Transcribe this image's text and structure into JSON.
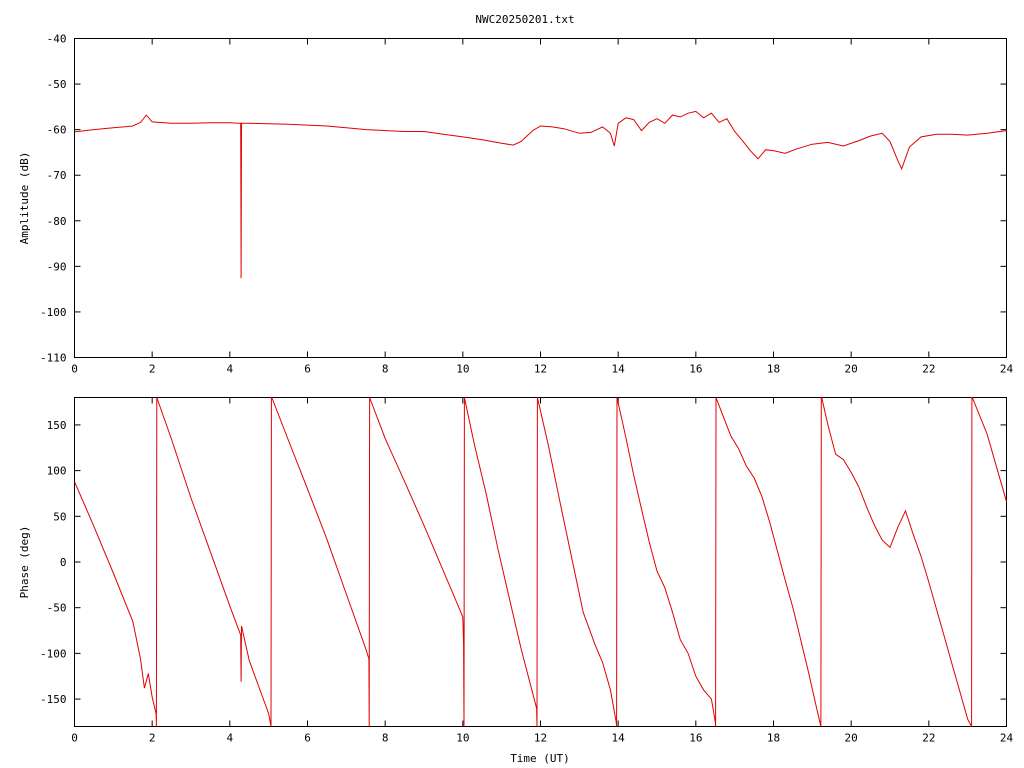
{
  "title": "NWC20250201.txt",
  "colors": {
    "series": "#e00000",
    "axis": "#000000",
    "background": "#ffffff"
  },
  "chart_data": [
    {
      "type": "line",
      "title": "NWC20250201.txt",
      "xlabel": "",
      "ylabel": "Amplitude (dB)",
      "xlim": [
        0,
        24
      ],
      "ylim": [
        -110,
        -40
      ],
      "xticks": [
        "0",
        "2",
        "4",
        "6",
        "8",
        "10",
        "12",
        "14",
        "16",
        "18",
        "20",
        "22",
        "24"
      ],
      "yticks": [
        "-40",
        "-50",
        "-60",
        "-70",
        "-80",
        "-90",
        "-100",
        "-110"
      ],
      "grid": false,
      "legend": "none",
      "series": [
        {
          "x": [
            0,
            0.5,
            1.0,
            1.5,
            1.7,
            1.85,
            2.0,
            2.5,
            3.0,
            3.5,
            4.0,
            4.28,
            4.29,
            4.3,
            4.31,
            4.5,
            5.0,
            5.5,
            6.0,
            6.5,
            7.0,
            7.5,
            8.0,
            8.5,
            9.0,
            9.5,
            10.0,
            10.5,
            11.0,
            11.3,
            11.5,
            11.8,
            12.0,
            12.3,
            12.6,
            13.0,
            13.3,
            13.6,
            13.8,
            13.9,
            14.0,
            14.2,
            14.4,
            14.6,
            14.8,
            15.0,
            15.2,
            15.4,
            15.6,
            15.8,
            16.0,
            16.2,
            16.4,
            16.6,
            16.8,
            17.0,
            17.2,
            17.4,
            17.6,
            17.8,
            18.0,
            18.3,
            18.6,
            19.0,
            19.4,
            19.8,
            20.2,
            20.5,
            20.8,
            21.0,
            21.2,
            21.3,
            21.5,
            21.8,
            22.2,
            22.6,
            23.0,
            23.5,
            24.0
          ],
          "y": [
            -60.5,
            -60.0,
            -59.6,
            -59.2,
            -58.4,
            -56.8,
            -58.3,
            -58.6,
            -58.6,
            -58.5,
            -58.5,
            -58.6,
            -92.6,
            -58.6,
            -58.6,
            -58.6,
            -58.7,
            -58.8,
            -59.0,
            -59.2,
            -59.6,
            -60.0,
            -60.2,
            -60.4,
            -60.4,
            -61.0,
            -61.6,
            -62.2,
            -63.0,
            -63.4,
            -62.6,
            -60.2,
            -59.2,
            -59.4,
            -59.8,
            -60.8,
            -60.6,
            -59.4,
            -60.8,
            -63.6,
            -58.6,
            -57.4,
            -57.8,
            -60.2,
            -58.4,
            -57.6,
            -58.6,
            -56.8,
            -57.2,
            -56.4,
            -56.0,
            -57.4,
            -56.4,
            -58.4,
            -57.6,
            -60.4,
            -62.4,
            -64.6,
            -66.4,
            -64.4,
            -64.6,
            -65.2,
            -64.2,
            -63.2,
            -62.8,
            -63.6,
            -62.4,
            -61.4,
            -60.8,
            -62.6,
            -66.8,
            -68.6,
            -63.8,
            -61.6,
            -61.0,
            -61.0,
            -61.2,
            -60.8,
            -60.2
          ]
        }
      ]
    },
    {
      "type": "line",
      "title": "",
      "xlabel": "Time (UT)",
      "ylabel": "Phase (deg)",
      "xlim": [
        0,
        24
      ],
      "ylim": [
        -180,
        180
      ],
      "xticks": [
        "0",
        "2",
        "4",
        "6",
        "8",
        "10",
        "12",
        "14",
        "16",
        "18",
        "20",
        "22",
        "24"
      ],
      "yticks": [
        "150",
        "100",
        "50",
        "0",
        "-50",
        "-100",
        "-150"
      ],
      "grid": false,
      "legend": "none",
      "series": [
        {
          "x": [
            0,
            0.5,
            1.0,
            1.5,
            1.7,
            1.8,
            1.9,
            2.0,
            2.1,
            2.11,
            2.12,
            2.5,
            3.0,
            3.5,
            4.0,
            4.28,
            4.29,
            4.3,
            4.5,
            5.0,
            5.06,
            5.07,
            5.08,
            5.5,
            6.0,
            6.5,
            7.0,
            7.5,
            7.58,
            7.59,
            7.6,
            8.0,
            8.5,
            9.0,
            9.5,
            10.0,
            10.02,
            10.03,
            10.04,
            10.3,
            10.6,
            10.9,
            11.2,
            11.5,
            11.9,
            11.91,
            11.92,
            12.2,
            12.5,
            12.8,
            13.1,
            13.4,
            13.6,
            13.8,
            13.95,
            13.96,
            13.97,
            14.2,
            14.4,
            14.6,
            14.8,
            15.0,
            15.2,
            15.4,
            15.6,
            15.8,
            16.0,
            16.2,
            16.4,
            16.5,
            16.51,
            16.52,
            16.7,
            16.9,
            17.1,
            17.3,
            17.5,
            17.7,
            17.9,
            18.1,
            18.3,
            18.5,
            18.7,
            18.9,
            19.1,
            19.22,
            19.23,
            19.24,
            19.4,
            19.6,
            19.8,
            20.0,
            20.2,
            20.4,
            20.6,
            20.8,
            21.0,
            21.2,
            21.4,
            21.6,
            21.8,
            22.0,
            22.2,
            22.4,
            22.6,
            22.8,
            23.0,
            23.1,
            23.11,
            23.12,
            23.5,
            24.0
          ],
          "y": [
            88,
            39,
            -12,
            -65,
            -106,
            -138,
            -122,
            -148,
            -166,
            -180,
            180,
            134,
            70,
            11,
            -48,
            -80,
            -131,
            -70,
            -108,
            -166,
            -180,
            180,
            180,
            134,
            80,
            25,
            -35,
            -95,
            -106,
            -180,
            180,
            135,
            88,
            40,
            -10,
            -60,
            -90,
            -180,
            180,
            128,
            75,
            15,
            -40,
            -95,
            -160,
            -180,
            180,
            128,
            66,
            5,
            -55,
            -90,
            -110,
            -140,
            -175,
            -180,
            180,
            136,
            95,
            58,
            22,
            -10,
            -28,
            -55,
            -85,
            -100,
            -125,
            -140,
            -150,
            -175,
            -180,
            180,
            160,
            138,
            124,
            105,
            92,
            72,
            44,
            12,
            -20,
            -50,
            -85,
            -120,
            -158,
            -180,
            180,
            180,
            150,
            118,
            112,
            98,
            82,
            60,
            40,
            24,
            16,
            38,
            56,
            30,
            6,
            -22,
            -52,
            -82,
            -112,
            -142,
            -172,
            -180,
            180,
            180,
            140,
            66
          ]
        }
      ]
    }
  ]
}
